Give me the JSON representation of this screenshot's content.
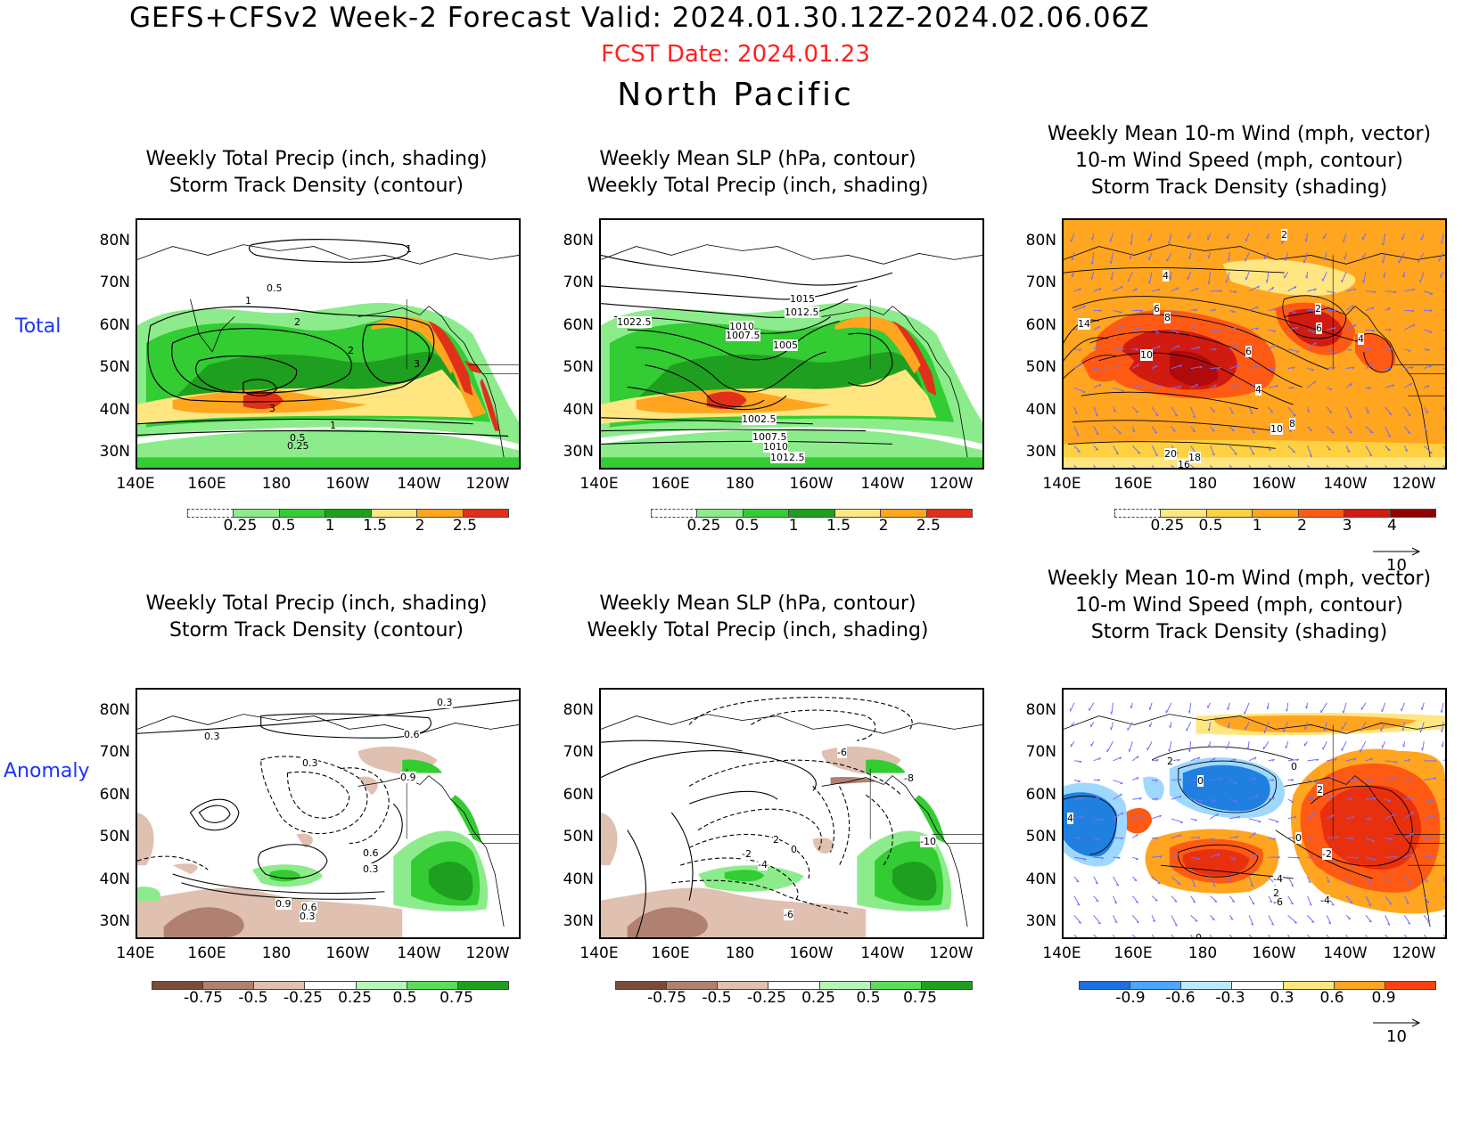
{
  "header": {
    "title": "GEFS+CFSv2 Week-2 Forecast     Valid: 2024.01.30.12Z-2024.02.06.06Z",
    "fcst_date": "FCST Date: 2024.01.23",
    "region": "North Pacific"
  },
  "rows": {
    "total": "Total",
    "anomaly": "Anomaly"
  },
  "panel_titles": {
    "p1": [
      "Weekly Total Precip (inch, shading)",
      "Storm Track Density (contour)"
    ],
    "p2": [
      "Weekly Mean SLP (hPa, contour)",
      "Weekly Total Precip (inch, shading)"
    ],
    "p3": [
      "Weekly Mean 10-m Wind (mph, vector)",
      "10-m Wind Speed (mph, contour)",
      "Storm Track Density (shading)"
    ]
  },
  "axes": {
    "lat": [
      "80N",
      "70N",
      "60N",
      "50N",
      "40N",
      "30N"
    ],
    "lon": [
      "140E",
      "160E",
      "180",
      "160W",
      "140W",
      "120W"
    ]
  },
  "colorbars": {
    "precip_total": [
      "0.25",
      "0.5",
      "1",
      "1.5",
      "2",
      "2.5"
    ],
    "std_total": [
      "0.25",
      "0.5",
      "1",
      "2",
      "3",
      "4"
    ],
    "precip_anom": [
      "-0.75",
      "-0.5",
      "-0.25",
      "0.25",
      "0.5",
      "0.75"
    ],
    "std_anom": [
      "-0.9",
      "-0.6",
      "-0.3",
      "0.3",
      "0.6",
      "0.9"
    ]
  },
  "contour_labels": {
    "total_std": [
      "1",
      "0.5",
      "1",
      "2",
      "2",
      "3",
      "3",
      "1",
      "0.5",
      "0.25"
    ],
    "total_slp": [
      "1015",
      "1012.5",
      "1022.5",
      "1010",
      "1007.5",
      "1005",
      "1002.5",
      "1007.5",
      "1010",
      "1012.5"
    ],
    "total_wind": [
      "2",
      "4",
      "6",
      "8",
      "14",
      "10",
      "6",
      "4",
      "2",
      "6",
      "4",
      "10",
      "8",
      "20",
      "18",
      "16"
    ],
    "anom_std": [
      "0.3",
      "0.3",
      "0.6",
      "0.3",
      "0.9",
      "0.6",
      "0.3",
      "0.9",
      "0.6",
      "0.3"
    ],
    "anom_slp": [
      "-6",
      "-8",
      "2",
      "-2",
      "0",
      "-4",
      "-6",
      "-10"
    ],
    "anom_wind": [
      "2",
      "0",
      "0",
      "2",
      "4",
      "0",
      "-2",
      "-4",
      "2",
      "-6",
      "-4",
      "0"
    ]
  },
  "vector_ref": "10",
  "colors": {
    "blue_label": "#1a33ff",
    "red_date": "#ff2020",
    "vector": "#6f6fff"
  }
}
